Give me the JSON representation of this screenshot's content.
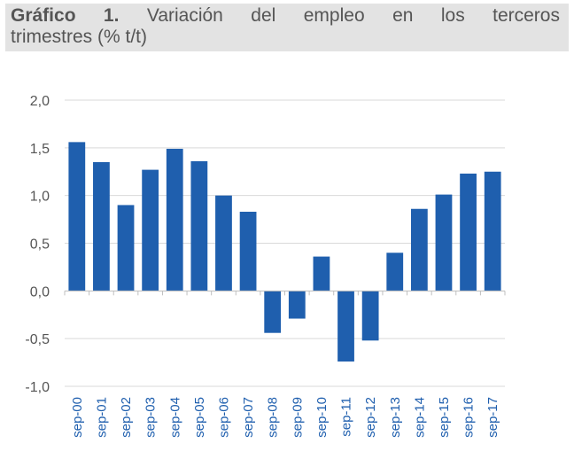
{
  "title": {
    "number_label": "Gráfico 1.",
    "text": "Variación del empleo en los terceros trimestres (% t/t)",
    "line1_words": [
      "Variación",
      "del",
      "empleo",
      "en",
      "los",
      "terceros"
    ],
    "line2": "trimestres (% t/t)"
  },
  "chart_data": {
    "type": "bar",
    "title": "Gráfico 1. Variación del empleo en los terceros trimestres (% t/t)",
    "xlabel": "",
    "ylabel": "",
    "categories": [
      "sep-00",
      "sep-01",
      "sep-02",
      "sep-03",
      "sep-04",
      "sep-05",
      "sep-06",
      "sep-07",
      "sep-08",
      "sep-09",
      "sep-10",
      "sep-11",
      "sep-12",
      "sep-13",
      "sep-14",
      "sep-15",
      "sep-16",
      "sep-17"
    ],
    "values": [
      1.56,
      1.35,
      0.9,
      1.27,
      1.49,
      1.36,
      1.0,
      0.83,
      -0.44,
      -0.29,
      0.36,
      -0.74,
      -0.52,
      0.4,
      0.86,
      1.01,
      1.23,
      1.25
    ],
    "ylim": [
      -1.0,
      2.0
    ],
    "yticks": [
      -1.0,
      -0.5,
      0.0,
      0.5,
      1.0,
      1.5,
      2.0
    ],
    "ytick_labels": [
      "-1,0",
      "-0,5",
      "0,0",
      "0,5",
      "1,0",
      "1,5",
      "2,0"
    ],
    "grid": true,
    "legend": "none",
    "bar_color": "#1f5fae",
    "grid_color": "#d9d9d9",
    "axis_color": "#bfbfbf"
  }
}
